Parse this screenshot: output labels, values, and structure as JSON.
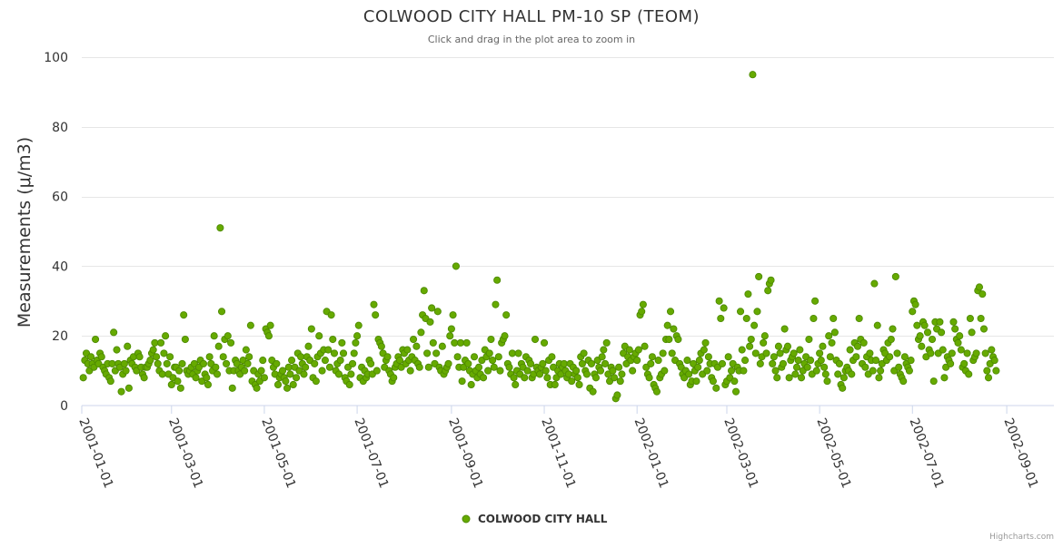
{
  "chart_data": {
    "type": "scatter",
    "title": "COLWOOD CITY HALL PM-10 SP (TEOM)",
    "subtitle": "Click and drag in the plot area to zoom in",
    "ylabel": "Measurements (μ/m3)",
    "xlabel": "",
    "ylim": [
      0,
      100
    ],
    "yticks": [
      0,
      20,
      40,
      60,
      80,
      100
    ],
    "xlim": [
      "2001-01-01",
      "2002-10-02"
    ],
    "xticks": [
      "2001-01-01",
      "2001-03-01",
      "2001-05-01",
      "2001-07-01",
      "2001-09-01",
      "2001-11-01",
      "2002-01-01",
      "2002-03-01",
      "2002-05-01",
      "2002-07-01",
      "2002-09-01"
    ],
    "color": "#66aa00",
    "credits": "Highcharts.com",
    "series": [
      {
        "name": "COLWOOD CITY HALL",
        "x_start": "2001-01-02",
        "values": [
          8,
          13,
          15,
          12,
          10,
          14,
          12,
          11,
          19,
          13,
          12,
          15,
          14,
          11,
          10,
          9,
          12,
          8,
          7,
          12,
          21,
          10,
          16,
          12,
          11,
          4,
          9,
          12,
          10,
          17,
          5,
          13,
          12,
          14,
          11,
          10,
          15,
          14,
          11,
          9,
          8,
          11,
          11,
          12,
          13,
          15,
          16,
          18,
          14,
          12,
          10,
          18,
          9,
          15,
          20,
          12,
          9,
          14,
          6,
          8,
          11,
          11,
          7,
          10,
          5,
          12,
          26,
          19,
          10,
          9,
          10,
          11,
          9,
          12,
          8,
          10,
          11,
          13,
          7,
          12,
          9,
          8,
          6,
          14,
          12,
          10,
          20,
          11,
          9,
          17,
          51,
          27,
          14,
          19,
          12,
          20,
          10,
          18,
          5,
          10,
          13,
          12,
          10,
          9,
          11,
          13,
          10,
          16,
          12,
          14,
          23,
          7,
          10,
          6,
          5,
          9,
          7,
          10,
          13,
          8,
          22,
          21,
          20,
          23,
          13,
          11,
          9,
          12,
          6,
          8,
          9,
          10,
          8,
          7,
          5,
          11,
          9,
          13,
          6,
          11,
          8,
          15,
          10,
          14,
          12,
          9,
          11,
          14,
          17,
          13,
          22,
          8,
          12,
          7,
          14,
          20,
          15,
          10,
          16,
          13,
          27,
          16,
          11,
          26,
          19,
          15,
          10,
          12,
          9,
          13,
          18,
          15,
          8,
          7,
          11,
          6,
          9,
          12,
          15,
          18,
          20,
          23,
          8,
          11,
          7,
          10,
          8,
          9,
          13,
          12,
          9,
          29,
          26,
          10,
          19,
          18,
          17,
          15,
          11,
          13,
          14,
          10,
          9,
          7,
          8,
          11,
          12,
          14,
          13,
          11,
          16,
          15,
          12,
          16,
          13,
          10,
          14,
          19,
          13,
          17,
          12,
          11,
          21,
          26,
          33,
          25,
          15,
          11,
          24,
          28,
          18,
          12,
          15,
          27,
          11,
          10,
          17,
          9,
          10,
          11,
          12,
          20,
          22,
          26,
          18,
          40,
          14,
          11,
          18,
          7,
          11,
          13,
          18,
          12,
          10,
          6,
          9,
          14,
          10,
          8,
          11,
          9,
          13,
          8,
          16,
          14,
          10,
          15,
          19,
          13,
          11,
          29,
          36,
          14,
          10,
          18,
          19,
          20,
          26,
          12,
          11,
          9,
          15,
          8,
          6,
          10,
          15,
          9,
          12,
          11,
          8,
          14,
          10,
          13,
          12,
          8,
          9,
          19,
          11,
          10,
          9,
          11,
          12,
          18,
          10,
          8,
          13,
          6,
          14,
          11,
          6,
          8,
          10,
          12,
          9,
          11,
          12,
          10,
          8,
          9,
          12,
          7,
          11,
          9,
          10,
          8,
          6,
          14,
          12,
          15,
          10,
          9,
          13,
          5,
          12,
          4,
          9,
          8,
          13,
          11,
          10,
          14,
          16,
          12,
          18,
          9,
          7,
          11,
          10,
          8,
          2,
          3,
          11,
          7,
          9,
          15,
          17,
          12,
          14,
          16,
          13,
          10,
          14,
          15,
          13,
          16,
          26,
          27,
          29,
          17,
          11,
          9,
          8,
          12,
          14,
          6,
          5,
          4,
          13,
          8,
          9,
          15,
          10,
          19,
          23,
          19,
          27,
          15,
          22,
          13,
          20,
          19,
          12,
          11,
          9,
          8,
          10,
          13,
          9,
          6,
          7,
          12,
          10,
          7,
          11,
          13,
          15,
          9,
          16,
          18,
          10,
          14,
          12,
          8,
          7,
          12,
          5,
          11,
          30,
          25,
          12,
          28,
          6,
          7,
          14,
          8,
          10,
          12,
          7,
          4,
          11,
          10,
          27,
          16,
          10,
          13,
          25,
          32,
          17,
          19,
          95,
          23,
          15,
          27,
          37,
          12,
          14,
          18,
          20,
          15,
          33,
          35,
          36,
          12,
          14,
          10,
          8,
          17,
          15,
          11,
          12,
          22,
          16,
          17,
          8,
          13,
          14,
          15,
          9,
          11,
          13,
          16,
          8,
          10,
          12,
          14,
          11,
          19,
          13,
          9,
          25,
          30,
          10,
          12,
          15,
          13,
          17,
          11,
          9,
          7,
          20,
          14,
          18,
          25,
          21,
          13,
          9,
          12,
          6,
          5,
          8,
          10,
          11,
          10,
          16,
          9,
          13,
          18,
          14,
          17,
          25,
          19,
          12,
          18,
          11,
          14,
          9,
          15,
          13,
          10,
          35,
          13,
          23,
          8,
          10,
          12,
          16,
          15,
          13,
          18,
          14,
          19,
          22,
          10,
          37,
          15,
          11,
          9,
          8,
          7,
          14,
          12,
          11,
          10,
          13,
          27,
          30,
          29,
          23,
          19,
          20,
          17,
          24,
          23,
          14,
          21,
          16,
          15,
          19,
          7,
          24,
          22,
          15,
          24,
          21,
          16,
          8,
          11,
          14,
          13,
          12,
          15,
          24,
          22,
          19,
          18,
          20,
          16,
          11,
          12,
          10,
          15,
          9,
          25,
          21,
          13,
          14,
          15,
          33,
          34,
          25,
          32,
          22,
          15,
          10,
          8,
          12,
          16,
          14,
          13,
          10
        ]
      }
    ]
  }
}
